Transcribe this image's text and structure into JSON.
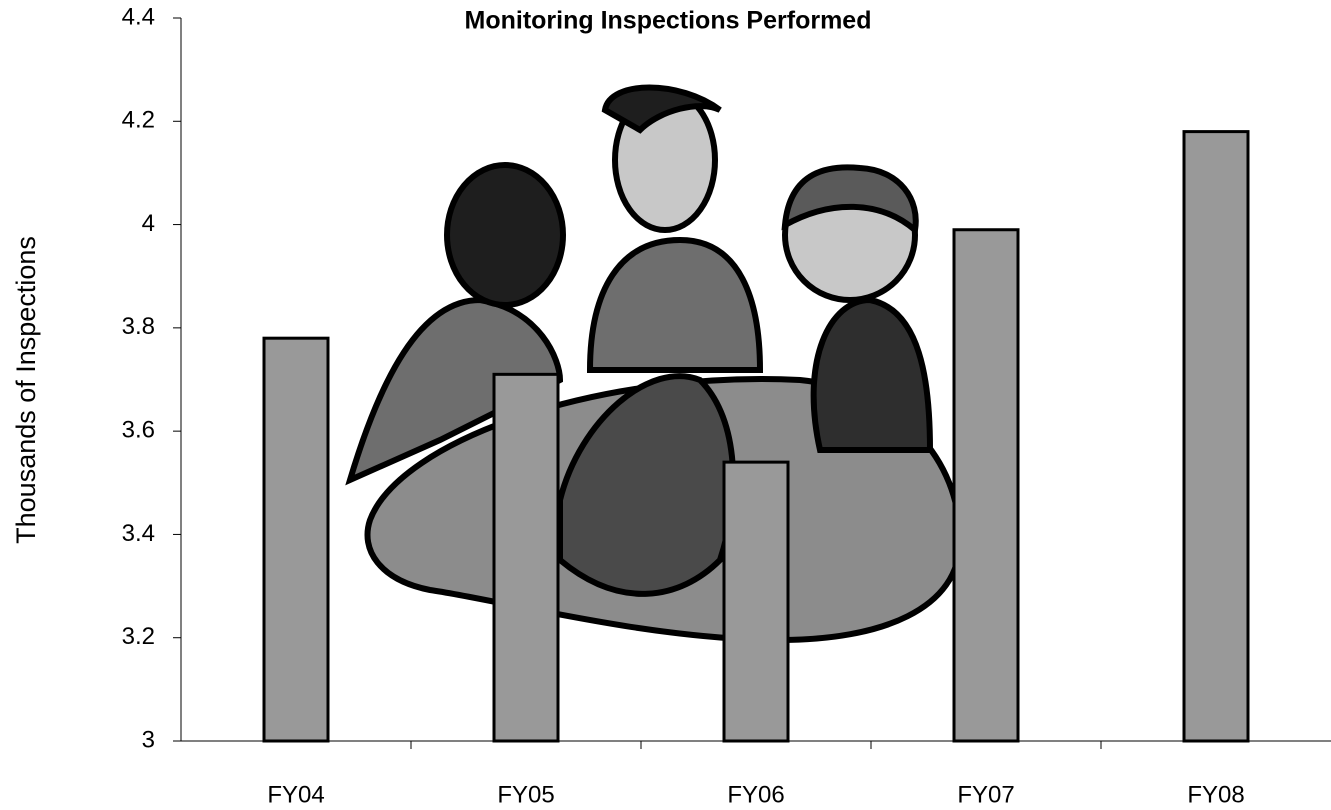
{
  "chart_data": {
    "type": "bar",
    "title": "Monitoring Inspections Performed",
    "y_label": "Thousands of Inspections",
    "categories": [
      "FY04",
      "FY05",
      "FY06",
      "FY07",
      "FY08"
    ],
    "values": [
      3.78,
      3.71,
      3.54,
      3.99,
      4.18
    ],
    "color": "#999999",
    "ylim": [
      3,
      4.4
    ],
    "yticks": [
      3,
      3.2,
      3.4,
      3.6,
      3.8,
      4,
      4.2,
      4.4
    ],
    "grid": false
  }
}
